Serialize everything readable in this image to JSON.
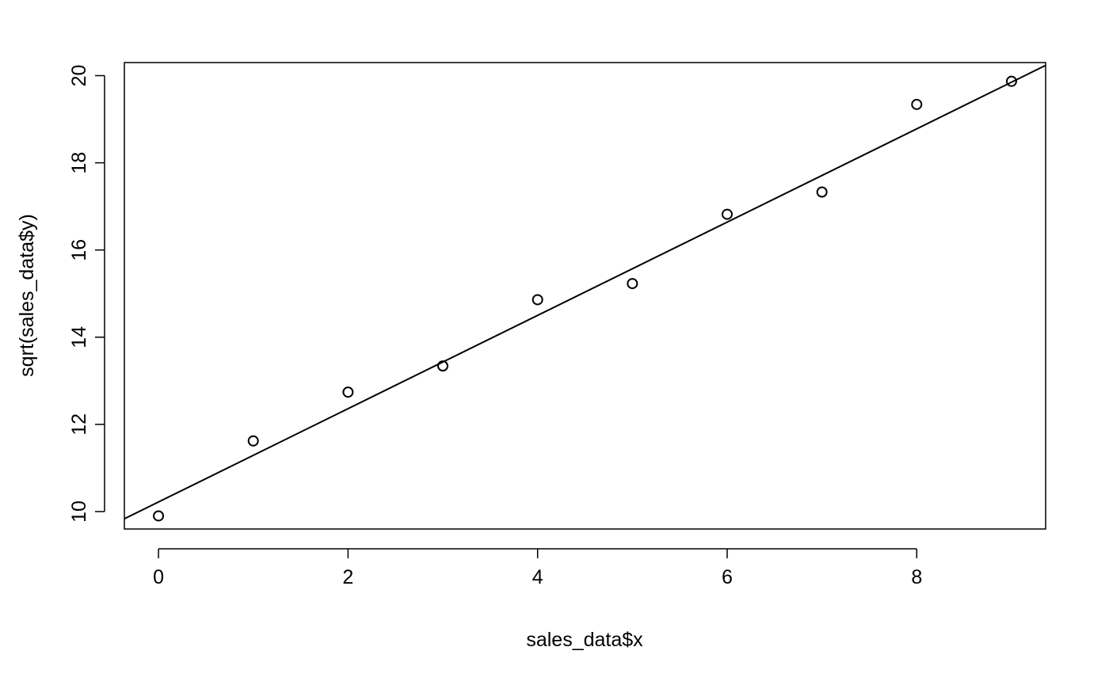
{
  "chart_data": {
    "type": "scatter",
    "title": "",
    "xlabel": "sales_data$x",
    "ylabel": "sqrt(sales_data$y)",
    "xlim": [
      -0.36,
      9.36
    ],
    "ylim": [
      9.6,
      20.3
    ],
    "x_ticks": [
      0,
      2,
      4,
      6,
      8
    ],
    "x_tick_labels": [
      "0",
      "2",
      "4",
      "6",
      "8"
    ],
    "y_ticks": [
      10,
      12,
      14,
      16,
      18,
      20
    ],
    "y_tick_labels": [
      "10",
      "12",
      "14",
      "16",
      "18",
      "20"
    ],
    "grid": false,
    "legend": "none",
    "marker": "open-circle",
    "colors": {
      "points": "#000000",
      "line": "#000000",
      "axes": "#000000"
    },
    "series": [
      {
        "x": [
          0,
          1,
          2,
          3,
          4,
          5,
          6,
          7,
          8,
          9
        ],
        "y": [
          9.9,
          11.62,
          12.74,
          13.34,
          14.86,
          15.23,
          16.82,
          17.33,
          19.34,
          19.87
        ]
      }
    ],
    "fit_line": {
      "intercept": 10.22,
      "slope": 1.07
    }
  }
}
